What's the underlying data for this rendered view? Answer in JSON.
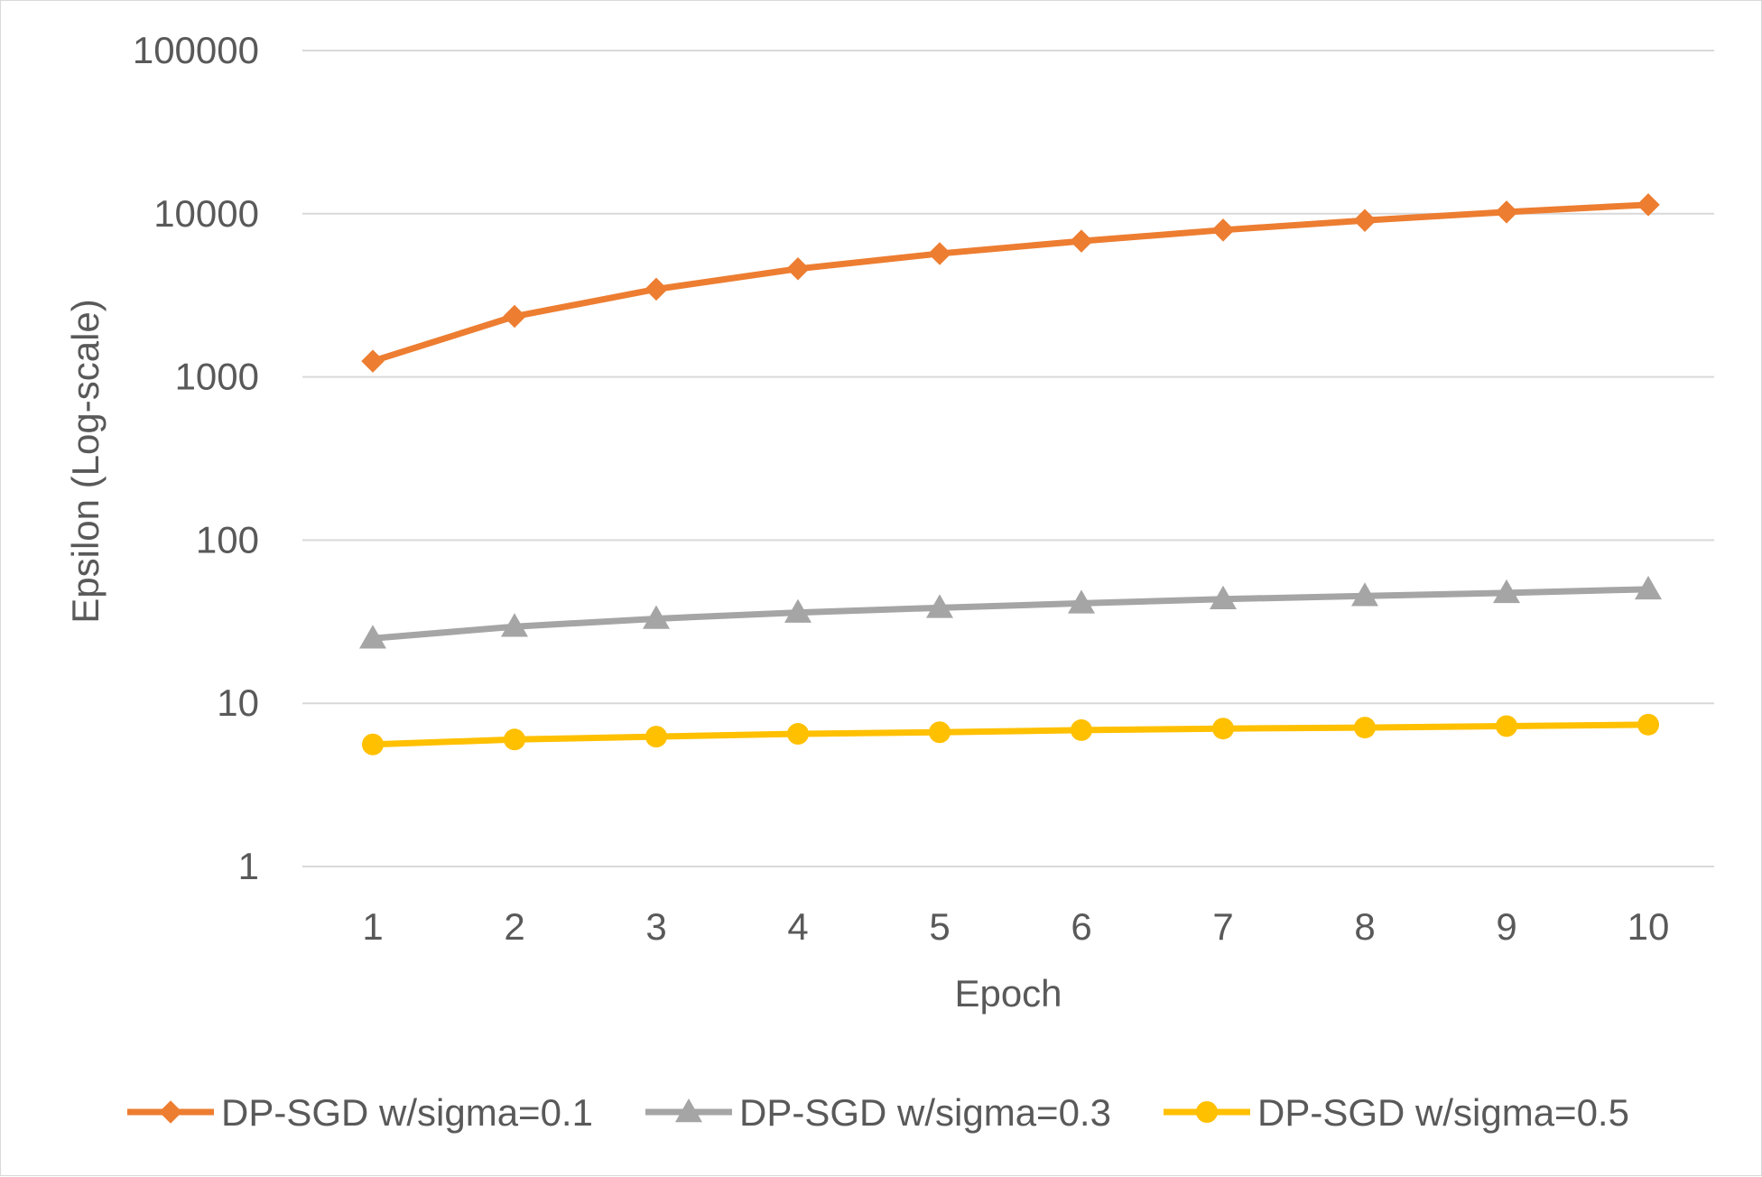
{
  "chart_data": {
    "type": "line",
    "title": "",
    "xlabel": "Epoch",
    "ylabel": "Epsilon (Log-scale)",
    "yscale": "log",
    "ylim": [
      1,
      100000
    ],
    "y_ticks": [
      "1",
      "10",
      "100",
      "1000",
      "10000",
      "100000"
    ],
    "categories": [
      "1",
      "2",
      "3",
      "4",
      "5",
      "6",
      "7",
      "8",
      "9",
      "10"
    ],
    "grid": "horizontal",
    "legend_position": "bottom",
    "series": [
      {
        "name": "DP-SGD w/sigma=0.1",
        "color": "#ED7D31",
        "marker": "diamond",
        "values": [
          1250,
          2350,
          3450,
          4600,
          5700,
          6800,
          7950,
          9100,
          10250,
          11350
        ]
      },
      {
        "name": "DP-SGD w/sigma=0.3",
        "color": "#A5A5A5",
        "marker": "triangle",
        "values": [
          25,
          29.5,
          33,
          36,
          38.5,
          41,
          43.5,
          45.5,
          47.5,
          50
        ]
      },
      {
        "name": "DP-SGD w/sigma=0.5",
        "color": "#FFC000",
        "marker": "circle",
        "values": [
          5.6,
          6.0,
          6.25,
          6.5,
          6.65,
          6.85,
          7.0,
          7.1,
          7.25,
          7.4
        ]
      }
    ]
  }
}
